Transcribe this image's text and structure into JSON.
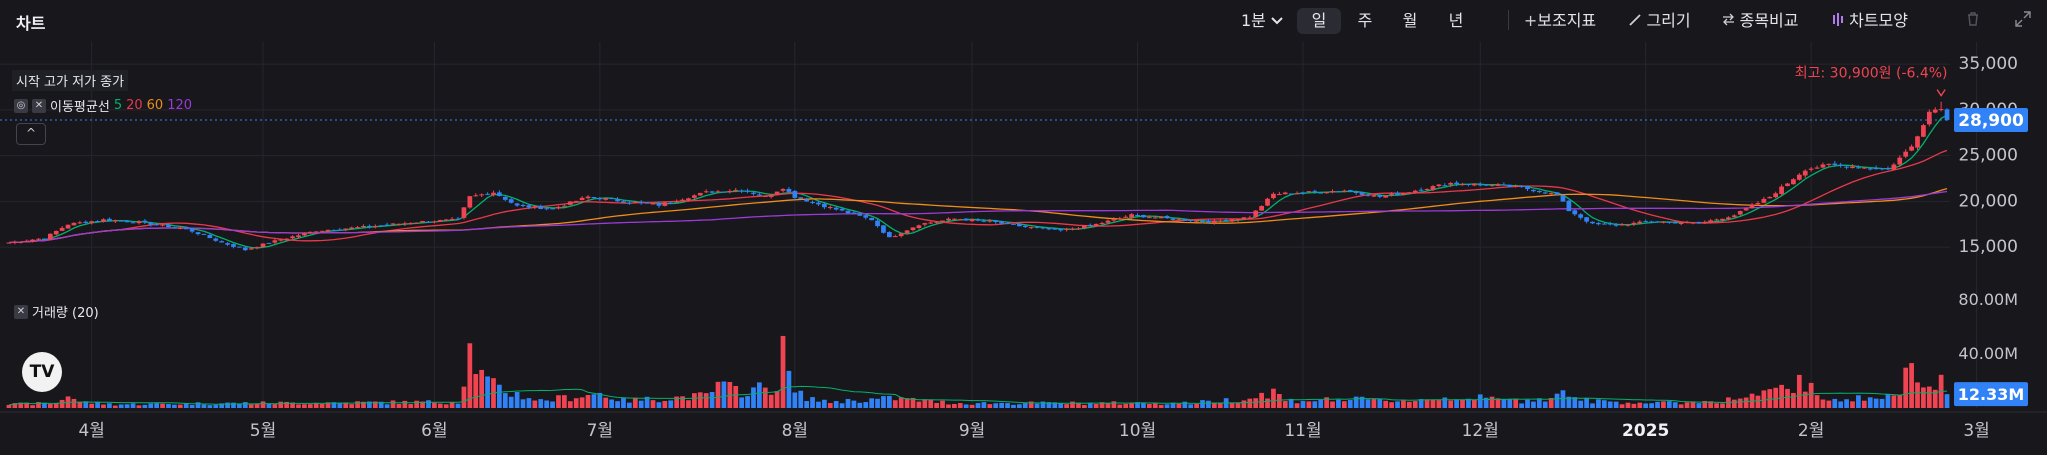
{
  "header": {
    "title": "차트",
    "interval_dropdown": "1분",
    "periods": [
      "일",
      "주",
      "월",
      "년"
    ],
    "active_period": "일",
    "tools": [
      "보조지표",
      "그리기",
      "종목비교",
      "차트모양"
    ]
  },
  "legend": {
    "ohlc_label": "시작 고가 저가 종가",
    "ma_label": "이동평균선",
    "ma_periods": [
      "5",
      "20",
      "60",
      "120"
    ],
    "volume_label": "거래량 (20)",
    "collapse_symbol": "^"
  },
  "colors": {
    "up": "#f04452",
    "down": "#3182f6",
    "ma5": "#00b36b",
    "ma20": "#e8394a",
    "ma60": "#f08c1a",
    "ma120": "#9b3ad6",
    "grid": "#26262d",
    "axis_text": "#c4c4cc",
    "price_badge": "#3182f6"
  },
  "chart_data": {
    "type": "candlestick",
    "price_axis": {
      "ylim": [
        12500,
        36000
      ],
      "ticks": [
        "15,000",
        "20,000",
        "25,000",
        "30,000",
        "35,000"
      ]
    },
    "volume_axis": {
      "ylim": [
        0,
        80000000
      ],
      "ticks": [
        "40.00M",
        "80.00M"
      ]
    },
    "x_ticks": [
      {
        "label": "4월",
        "day": 14
      },
      {
        "label": "5월",
        "day": 43
      },
      {
        "label": "6월",
        "day": 72
      },
      {
        "label": "7월",
        "day": 100
      },
      {
        "label": "8월",
        "day": 133
      },
      {
        "label": "9월",
        "day": 163
      },
      {
        "label": "10월",
        "day": 191
      },
      {
        "label": "11월",
        "day": 219
      },
      {
        "label": "12월",
        "day": 249
      },
      {
        "label": "2025",
        "day": 277
      },
      {
        "label": "2월",
        "day": 305
      },
      {
        "label": "3월",
        "day": 333
      }
    ],
    "last_day": 328,
    "current_price": 28900,
    "current_price_label": "28,900",
    "current_volume_label": "12.33M",
    "max_annotation": "최고: 30,900원 (-6.4%)",
    "max_price": 30900,
    "close_anchors": [
      [
        0,
        15500
      ],
      [
        6,
        16000
      ],
      [
        10,
        17500
      ],
      [
        16,
        18000
      ],
      [
        22,
        17700
      ],
      [
        30,
        17000
      ],
      [
        36,
        15500
      ],
      [
        40,
        14700
      ],
      [
        44,
        15500
      ],
      [
        52,
        16800
      ],
      [
        60,
        17200
      ],
      [
        70,
        17800
      ],
      [
        76,
        18000
      ],
      [
        78,
        20500
      ],
      [
        82,
        21000
      ],
      [
        86,
        19500
      ],
      [
        92,
        19200
      ],
      [
        98,
        20500
      ],
      [
        104,
        20000
      ],
      [
        110,
        19600
      ],
      [
        118,
        21000
      ],
      [
        124,
        21300
      ],
      [
        128,
        20500
      ],
      [
        131,
        21500
      ],
      [
        133,
        20500
      ],
      [
        138,
        19500
      ],
      [
        146,
        18000
      ],
      [
        149,
        16000
      ],
      [
        154,
        17500
      ],
      [
        160,
        18100
      ],
      [
        166,
        17800
      ],
      [
        172,
        17200
      ],
      [
        178,
        16800
      ],
      [
        184,
        17500
      ],
      [
        190,
        18500
      ],
      [
        198,
        18000
      ],
      [
        204,
        17800
      ],
      [
        210,
        18300
      ],
      [
        214,
        20800
      ],
      [
        220,
        21000
      ],
      [
        226,
        21200
      ],
      [
        232,
        20500
      ],
      [
        238,
        21200
      ],
      [
        244,
        22000
      ],
      [
        250,
        21800
      ],
      [
        256,
        21500
      ],
      [
        262,
        20700
      ],
      [
        264,
        19000
      ],
      [
        268,
        17500
      ],
      [
        272,
        17400
      ],
      [
        278,
        17800
      ],
      [
        286,
        17600
      ],
      [
        292,
        18500
      ],
      [
        298,
        20500
      ],
      [
        304,
        23500
      ],
      [
        308,
        24000
      ],
      [
        314,
        23700
      ],
      [
        318,
        23500
      ],
      [
        322,
        26000
      ],
      [
        325,
        29800
      ],
      [
        327,
        30300
      ],
      [
        328,
        28900
      ]
    ],
    "volume_anchors": [
      [
        0,
        3
      ],
      [
        8,
        4
      ],
      [
        10,
        11
      ],
      [
        12,
        5
      ],
      [
        18,
        3
      ],
      [
        40,
        4
      ],
      [
        76,
        5
      ],
      [
        78,
        48
      ],
      [
        80,
        26
      ],
      [
        82,
        18
      ],
      [
        84,
        14
      ],
      [
        90,
        6
      ],
      [
        100,
        12
      ],
      [
        104,
        6
      ],
      [
        118,
        10
      ],
      [
        120,
        18
      ],
      [
        124,
        14
      ],
      [
        130,
        18
      ],
      [
        131,
        45
      ],
      [
        133,
        12
      ],
      [
        138,
        5
      ],
      [
        150,
        8
      ],
      [
        160,
        4
      ],
      [
        200,
        4
      ],
      [
        210,
        8
      ],
      [
        214,
        14
      ],
      [
        216,
        6
      ],
      [
        226,
        7
      ],
      [
        236,
        6
      ],
      [
        246,
        9
      ],
      [
        256,
        6
      ],
      [
        262,
        10
      ],
      [
        264,
        14
      ],
      [
        266,
        6
      ],
      [
        280,
        4
      ],
      [
        290,
        6
      ],
      [
        298,
        12
      ],
      [
        304,
        22
      ],
      [
        306,
        8
      ],
      [
        316,
        8
      ],
      [
        320,
        12
      ],
      [
        322,
        38
      ],
      [
        325,
        22
      ],
      [
        327,
        25
      ],
      [
        328,
        12
      ]
    ]
  }
}
